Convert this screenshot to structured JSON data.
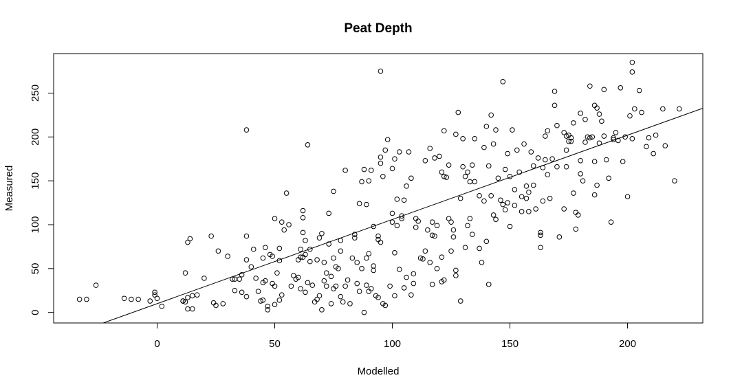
{
  "chart_data": {
    "type": "scatter",
    "title": "Peat Depth",
    "xlabel": "Modelled",
    "ylabel": "Measured",
    "xlim": [
      -44,
      232
    ],
    "ylim": [
      -12,
      295
    ],
    "x_ticks": [
      0,
      50,
      100,
      150,
      200
    ],
    "y_ticks": [
      0,
      50,
      100,
      150,
      200,
      250
    ],
    "grid": false,
    "legend": "none",
    "point_style": "open-circle",
    "fit_line": {
      "intercept": 10,
      "slope": 0.96
    },
    "points": [
      [
        -33,
        15
      ],
      [
        -30,
        15
      ],
      [
        -26,
        31
      ],
      [
        -14,
        16
      ],
      [
        -11,
        15
      ],
      [
        -8,
        15
      ],
      [
        -3,
        13
      ],
      [
        -1,
        23
      ],
      [
        -1,
        20
      ],
      [
        0,
        16
      ],
      [
        2,
        7
      ],
      [
        11,
        13
      ],
      [
        11,
        13
      ],
      [
        12,
        45
      ],
      [
        12,
        12
      ],
      [
        13,
        17
      ],
      [
        13,
        4
      ],
      [
        13,
        80
      ],
      [
        14,
        84
      ],
      [
        15,
        4
      ],
      [
        15,
        19
      ],
      [
        17,
        20
      ],
      [
        20,
        39
      ],
      [
        23,
        87
      ],
      [
        24,
        11
      ],
      [
        25,
        8
      ],
      [
        26,
        70
      ],
      [
        28,
        10
      ],
      [
        30,
        64
      ],
      [
        32,
        38
      ],
      [
        33,
        38
      ],
      [
        33,
        25
      ],
      [
        35,
        38
      ],
      [
        36,
        43
      ],
      [
        36,
        23
      ],
      [
        38,
        18
      ],
      [
        38,
        87
      ],
      [
        38,
        208
      ],
      [
        38,
        60
      ],
      [
        40,
        52
      ],
      [
        41,
        72
      ],
      [
        42,
        39
      ],
      [
        43,
        24
      ],
      [
        44,
        13
      ],
      [
        45,
        14
      ],
      [
        45,
        34
      ],
      [
        45,
        62
      ],
      [
        46,
        36
      ],
      [
        46,
        74
      ],
      [
        47,
        3
      ],
      [
        47,
        7
      ],
      [
        48,
        66
      ],
      [
        49,
        64
      ],
      [
        49,
        33
      ],
      [
        50,
        9
      ],
      [
        50,
        30
      ],
      [
        50,
        107
      ],
      [
        51,
        45
      ],
      [
        52,
        14
      ],
      [
        52,
        59
      ],
      [
        52,
        73
      ],
      [
        53,
        103
      ],
      [
        53,
        20
      ],
      [
        54,
        94
      ],
      [
        55,
        136
      ],
      [
        56,
        100
      ],
      [
        57,
        30
      ],
      [
        58,
        42
      ],
      [
        59,
        38
      ],
      [
        60,
        40
      ],
      [
        60,
        60
      ],
      [
        61,
        27
      ],
      [
        61,
        72
      ],
      [
        61,
        63
      ],
      [
        62,
        91
      ],
      [
        62,
        63
      ],
      [
        62,
        108
      ],
      [
        62,
        116
      ],
      [
        63,
        66
      ],
      [
        63,
        82
      ],
      [
        63,
        23
      ],
      [
        64,
        191
      ],
      [
        64,
        34
      ],
      [
        65,
        58
      ],
      [
        65,
        72
      ],
      [
        66,
        31
      ],
      [
        67,
        12
      ],
      [
        68,
        15
      ],
      [
        68,
        60
      ],
      [
        69,
        85
      ],
      [
        69,
        19
      ],
      [
        70,
        3
      ],
      [
        70,
        90
      ],
      [
        71,
        36
      ],
      [
        71,
        57
      ],
      [
        72,
        30
      ],
      [
        72,
        45
      ],
      [
        73,
        113
      ],
      [
        73,
        78
      ],
      [
        74,
        41
      ],
      [
        74,
        10
      ],
      [
        75,
        27
      ],
      [
        75,
        62
      ],
      [
        75,
        138
      ],
      [
        76,
        52
      ],
      [
        76,
        30
      ],
      [
        77,
        50
      ],
      [
        78,
        70
      ],
      [
        78,
        18
      ],
      [
        78,
        82
      ],
      [
        79,
        12
      ],
      [
        80,
        30
      ],
      [
        80,
        162
      ],
      [
        81,
        37
      ],
      [
        82,
        10
      ],
      [
        83,
        62
      ],
      [
        84,
        89
      ],
      [
        84,
        85
      ],
      [
        85,
        33
      ],
      [
        85,
        57
      ],
      [
        86,
        24
      ],
      [
        86,
        124
      ],
      [
        87,
        149
      ],
      [
        87,
        50
      ],
      [
        88,
        0
      ],
      [
        88,
        163
      ],
      [
        89,
        62
      ],
      [
        89,
        123
      ],
      [
        89,
        31
      ],
      [
        90,
        67
      ],
      [
        90,
        24
      ],
      [
        90,
        150
      ],
      [
        91,
        162
      ],
      [
        91,
        27
      ],
      [
        92,
        48
      ],
      [
        92,
        98
      ],
      [
        92,
        53
      ],
      [
        93,
        19
      ],
      [
        94,
        17
      ],
      [
        94,
        83
      ],
      [
        94,
        87
      ],
      [
        95,
        80
      ],
      [
        95,
        177
      ],
      [
        95,
        170
      ],
      [
        95,
        275
      ],
      [
        96,
        155
      ],
      [
        96,
        10
      ],
      [
        97,
        8
      ],
      [
        97,
        185
      ],
      [
        98,
        197
      ],
      [
        99,
        30
      ],
      [
        100,
        164
      ],
      [
        100,
        113
      ],
      [
        100,
        103
      ],
      [
        101,
        175
      ],
      [
        101,
        19
      ],
      [
        101,
        68
      ],
      [
        102,
        99
      ],
      [
        102,
        129
      ],
      [
        103,
        183
      ],
      [
        103,
        49
      ],
      [
        104,
        107
      ],
      [
        104,
        110
      ],
      [
        105,
        28
      ],
      [
        105,
        128
      ],
      [
        106,
        144
      ],
      [
        106,
        40
      ],
      [
        107,
        183
      ],
      [
        108,
        153
      ],
      [
        108,
        20
      ],
      [
        109,
        33
      ],
      [
        109,
        44
      ],
      [
        110,
        107
      ],
      [
        110,
        97
      ],
      [
        111,
        104
      ],
      [
        112,
        62
      ],
      [
        113,
        61
      ],
      [
        114,
        173
      ],
      [
        114,
        70
      ],
      [
        115,
        94
      ],
      [
        116,
        187
      ],
      [
        116,
        57
      ],
      [
        117,
        88
      ],
      [
        117,
        32
      ],
      [
        117,
        103
      ],
      [
        118,
        176
      ],
      [
        118,
        87
      ],
      [
        119,
        99
      ],
      [
        119,
        50
      ],
      [
        120,
        178
      ],
      [
        121,
        160
      ],
      [
        121,
        63
      ],
      [
        121,
        35
      ],
      [
        122,
        207
      ],
      [
        122,
        155
      ],
      [
        122,
        37
      ],
      [
        123,
        154
      ],
      [
        124,
        107
      ],
      [
        124,
        168
      ],
      [
        125,
        70
      ],
      [
        125,
        103
      ],
      [
        126,
        94
      ],
      [
        126,
        86
      ],
      [
        127,
        203
      ],
      [
        127,
        42
      ],
      [
        127,
        48
      ],
      [
        128,
        228
      ],
      [
        129,
        130
      ],
      [
        129,
        13
      ],
      [
        130,
        166
      ],
      [
        130,
        198
      ],
      [
        131,
        74
      ],
      [
        131,
        155
      ],
      [
        132,
        99
      ],
      [
        132,
        160
      ],
      [
        133,
        107
      ],
      [
        133,
        149
      ],
      [
        134,
        89
      ],
      [
        134,
        168
      ],
      [
        135,
        198
      ],
      [
        135,
        149
      ],
      [
        137,
        73
      ],
      [
        137,
        133
      ],
      [
        138,
        57
      ],
      [
        139,
        188
      ],
      [
        139,
        127
      ],
      [
        140,
        212
      ],
      [
        140,
        81
      ],
      [
        141,
        32
      ],
      [
        141,
        167
      ],
      [
        142,
        133
      ],
      [
        142,
        225
      ],
      [
        143,
        192
      ],
      [
        143,
        111
      ],
      [
        144,
        106
      ],
      [
        144,
        208
      ],
      [
        145,
        153
      ],
      [
        146,
        128
      ],
      [
        147,
        123
      ],
      [
        147,
        263
      ],
      [
        148,
        163
      ],
      [
        148,
        117
      ],
      [
        149,
        181
      ],
      [
        149,
        125
      ],
      [
        150,
        98
      ],
      [
        150,
        155
      ],
      [
        151,
        208
      ],
      [
        152,
        140
      ],
      [
        152,
        122
      ],
      [
        153,
        185
      ],
      [
        154,
        160
      ],
      [
        155,
        132
      ],
      [
        155,
        115
      ],
      [
        156,
        192
      ],
      [
        157,
        144
      ],
      [
        157,
        130
      ],
      [
        158,
        137
      ],
      [
        158,
        115
      ],
      [
        159,
        183
      ],
      [
        160,
        145
      ],
      [
        160,
        167
      ],
      [
        161,
        118
      ],
      [
        162,
        176
      ],
      [
        163,
        91
      ],
      [
        163,
        88
      ],
      [
        163,
        74
      ],
      [
        164,
        127
      ],
      [
        164,
        165
      ],
      [
        165,
        201
      ],
      [
        165,
        174
      ],
      [
        166,
        157
      ],
      [
        166,
        207
      ],
      [
        167,
        130
      ],
      [
        168,
        175
      ],
      [
        169,
        252
      ],
      [
        169,
        236
      ],
      [
        170,
        166
      ],
      [
        170,
        213
      ],
      [
        171,
        86
      ],
      [
        173,
        118
      ],
      [
        173,
        205
      ],
      [
        174,
        166
      ],
      [
        174,
        201
      ],
      [
        174,
        185
      ],
      [
        175,
        195
      ],
      [
        175,
        202
      ],
      [
        176,
        199
      ],
      [
        176,
        195
      ],
      [
        177,
        216
      ],
      [
        177,
        136
      ],
      [
        178,
        114
      ],
      [
        178,
        95
      ],
      [
        179,
        111
      ],
      [
        180,
        158
      ],
      [
        180,
        227
      ],
      [
        180,
        173
      ],
      [
        181,
        150
      ],
      [
        182,
        194
      ],
      [
        182,
        220
      ],
      [
        183,
        200
      ],
      [
        184,
        258
      ],
      [
        184,
        199
      ],
      [
        185,
        200
      ],
      [
        186,
        236
      ],
      [
        186,
        134
      ],
      [
        186,
        172
      ],
      [
        187,
        145
      ],
      [
        187,
        233
      ],
      [
        188,
        226
      ],
      [
        188,
        193
      ],
      [
        189,
        218
      ],
      [
        190,
        201
      ],
      [
        190,
        254
      ],
      [
        191,
        174
      ],
      [
        192,
        153
      ],
      [
        193,
        103
      ],
      [
        194,
        199
      ],
      [
        194,
        197
      ],
      [
        195,
        205
      ],
      [
        196,
        196
      ],
      [
        197,
        256
      ],
      [
        198,
        172
      ],
      [
        199,
        200
      ],
      [
        200,
        132
      ],
      [
        201,
        224
      ],
      [
        202,
        285
      ],
      [
        202,
        274
      ],
      [
        202,
        198
      ],
      [
        203,
        232
      ],
      [
        205,
        253
      ],
      [
        206,
        228
      ],
      [
        208,
        189
      ],
      [
        209,
        199
      ],
      [
        211,
        181
      ],
      [
        212,
        202
      ],
      [
        215,
        232
      ],
      [
        216,
        190
      ],
      [
        220,
        150
      ],
      [
        222,
        232
      ]
    ]
  }
}
